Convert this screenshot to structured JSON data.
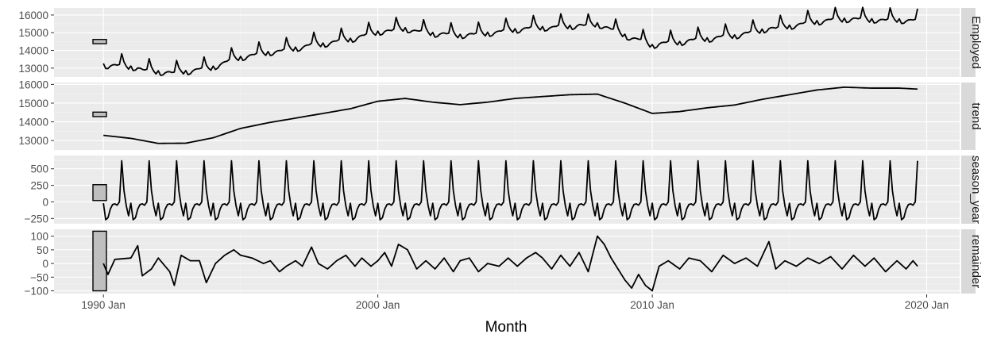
{
  "chart_data": {
    "type": "line",
    "xlabel": "Month",
    "x_ticks": [
      {
        "label": "1990 Jan",
        "value": 1990
      },
      {
        "label": "2000 Jan",
        "value": 2000
      },
      {
        "label": "2010 Jan",
        "value": 2010
      },
      {
        "label": "2020 Jan",
        "value": 2020
      }
    ],
    "xlim": [
      1988.2,
      2021.2
    ],
    "x_start": "1990 Jan",
    "x_end": "2019 Sep",
    "monthly_seasonal": [
      -20,
      -270,
      -240,
      -110,
      -40,
      -30,
      -50,
      0,
      620,
      170,
      -60,
      -210
    ],
    "trend_knots": [
      {
        "x": "1990 Jan",
        "y": 13280
      },
      {
        "x": "1991 Jan",
        "y": 13120
      },
      {
        "x": "1992 Jan",
        "y": 12850
      },
      {
        "x": "1993 Jan",
        "y": 12860
      },
      {
        "x": "1994 Jan",
        "y": 13150
      },
      {
        "x": "1995 Jan",
        "y": 13650
      },
      {
        "x": "1996 Jan",
        "y": 13950
      },
      {
        "x": "1997 Jan",
        "y": 14200
      },
      {
        "x": "1998 Jan",
        "y": 14450
      },
      {
        "x": "1999 Jan",
        "y": 14700
      },
      {
        "x": "2000 Jan",
        "y": 15100
      },
      {
        "x": "2001 Jan",
        "y": 15250
      },
      {
        "x": "2002 Jan",
        "y": 15050
      },
      {
        "x": "2003 Jan",
        "y": 14920
      },
      {
        "x": "2004 Jan",
        "y": 15050
      },
      {
        "x": "2005 Jan",
        "y": 15250
      },
      {
        "x": "2006 Jan",
        "y": 15350
      },
      {
        "x": "2007 Jan",
        "y": 15450
      },
      {
        "x": "2008 Jan",
        "y": 15480
      },
      {
        "x": "2009 Jan",
        "y": 15000
      },
      {
        "x": "2010 Jan",
        "y": 14450
      },
      {
        "x": "2011 Jan",
        "y": 14550
      },
      {
        "x": "2012 Jan",
        "y": 14750
      },
      {
        "x": "2013 Jan",
        "y": 14900
      },
      {
        "x": "2014 Jan",
        "y": 15200
      },
      {
        "x": "2015 Jan",
        "y": 15450
      },
      {
        "x": "2016 Jan",
        "y": 15700
      },
      {
        "x": "2017 Jan",
        "y": 15850
      },
      {
        "x": "2018 Jan",
        "y": 15800
      },
      {
        "x": "2019 Jan",
        "y": 15800
      },
      {
        "x": "2019 Sep",
        "y": 15750
      }
    ],
    "remainder_points": [
      {
        "x": "1990 Jan",
        "y": 0
      },
      {
        "x": "1990 Mar",
        "y": -40
      },
      {
        "x": "1990 Jun",
        "y": 15
      },
      {
        "x": "1991 Jan",
        "y": 20
      },
      {
        "x": "1991 Apr",
        "y": 65
      },
      {
        "x": "1991 Jun",
        "y": -45
      },
      {
        "x": "1991 Oct",
        "y": -20
      },
      {
        "x": "1992 Jan",
        "y": 20
      },
      {
        "x": "1992 Jun",
        "y": -30
      },
      {
        "x": "1992 Aug",
        "y": -80
      },
      {
        "x": "1992 Nov",
        "y": 30
      },
      {
        "x": "1993 Mar",
        "y": 10
      },
      {
        "x": "1993 Jul",
        "y": 10
      },
      {
        "x": "1993 Oct",
        "y": -70
      },
      {
        "x": "1994 Feb",
        "y": 0
      },
      {
        "x": "1994 Jun",
        "y": 30
      },
      {
        "x": "1994 Oct",
        "y": 50
      },
      {
        "x": "1995 Jan",
        "y": 30
      },
      {
        "x": "1995 Jun",
        "y": 20
      },
      {
        "x": "1995 Nov",
        "y": 0
      },
      {
        "x": "1996 Feb",
        "y": 10
      },
      {
        "x": "1996 Jun",
        "y": -30
      },
      {
        "x": "1996 Sep",
        "y": -10
      },
      {
        "x": "1997 Jan",
        "y": 10
      },
      {
        "x": "1997 Apr",
        "y": -10
      },
      {
        "x": "1997 Aug",
        "y": 60
      },
      {
        "x": "1997 Nov",
        "y": 0
      },
      {
        "x": "1998 Mar",
        "y": -20
      },
      {
        "x": "1998 Jul",
        "y": 10
      },
      {
        "x": "1998 Nov",
        "y": 30
      },
      {
        "x": "1999 Mar",
        "y": -10
      },
      {
        "x": "1999 Jun",
        "y": 20
      },
      {
        "x": "1999 Oct",
        "y": -10
      },
      {
        "x": "2000 Jan",
        "y": 10
      },
      {
        "x": "2000 Apr",
        "y": 40
      },
      {
        "x": "2000 Jul",
        "y": -10
      },
      {
        "x": "2000 Oct",
        "y": 70
      },
      {
        "x": "2001 Feb",
        "y": 50
      },
      {
        "x": "2001 Jun",
        "y": -20
      },
      {
        "x": "2001 Oct",
        "y": 10
      },
      {
        "x": "2002 Feb",
        "y": -20
      },
      {
        "x": "2002 Jun",
        "y": 20
      },
      {
        "x": "2002 Oct",
        "y": -30
      },
      {
        "x": "2003 Jan",
        "y": 10
      },
      {
        "x": "2003 May",
        "y": 20
      },
      {
        "x": "2003 Sep",
        "y": -30
      },
      {
        "x": "2004 Jan",
        "y": 0
      },
      {
        "x": "2004 Jun",
        "y": -10
      },
      {
        "x": "2004 Oct",
        "y": 20
      },
      {
        "x": "2005 Feb",
        "y": -10
      },
      {
        "x": "2005 Jun",
        "y": 20
      },
      {
        "x": "2005 Oct",
        "y": 40
      },
      {
        "x": "2006 Jan",
        "y": 20
      },
      {
        "x": "2006 May",
        "y": -20
      },
      {
        "x": "2006 Sep",
        "y": 30
      },
      {
        "x": "2007 Jan",
        "y": -10
      },
      {
        "x": "2007 May",
        "y": 40
      },
      {
        "x": "2007 Sep",
        "y": -30
      },
      {
        "x": "2008 Jan",
        "y": 100
      },
      {
        "x": "2008 Apr",
        "y": 70
      },
      {
        "x": "2008 Jul",
        "y": 20
      },
      {
        "x": "2008 Oct",
        "y": -20
      },
      {
        "x": "2009 Jan",
        "y": -60
      },
      {
        "x": "2009 Apr",
        "y": -90
      },
      {
        "x": "2009 Jul",
        "y": -40
      },
      {
        "x": "2009 Oct",
        "y": -80
      },
      {
        "x": "2010 Jan",
        "y": -100
      },
      {
        "x": "2010 Apr",
        "y": -10
      },
      {
        "x": "2010 Aug",
        "y": 10
      },
      {
        "x": "2011 Jan",
        "y": -20
      },
      {
        "x": "2011 May",
        "y": 20
      },
      {
        "x": "2011 Oct",
        "y": 10
      },
      {
        "x": "2012 Mar",
        "y": -30
      },
      {
        "x": "2012 Aug",
        "y": 30
      },
      {
        "x": "2013 Jan",
        "y": 0
      },
      {
        "x": "2013 Jun",
        "y": 20
      },
      {
        "x": "2013 Nov",
        "y": -10
      },
      {
        "x": "2014 Apr",
        "y": 80
      },
      {
        "x": "2014 Jul",
        "y": -20
      },
      {
        "x": "2014 Nov",
        "y": 10
      },
      {
        "x": "2015 Apr",
        "y": -10
      },
      {
        "x": "2015 Sep",
        "y": 20
      },
      {
        "x": "2016 Feb",
        "y": 0
      },
      {
        "x": "2016 Jul",
        "y": 25
      },
      {
        "x": "2016 Dec",
        "y": -20
      },
      {
        "x": "2017 May",
        "y": 30
      },
      {
        "x": "2017 Oct",
        "y": -10
      },
      {
        "x": "2018 Feb",
        "y": 20
      },
      {
        "x": "2018 Jul",
        "y": -30
      },
      {
        "x": "2018 Dec",
        "y": 10
      },
      {
        "x": "2019 Apr",
        "y": -20
      },
      {
        "x": "2019 Jul",
        "y": 10
      },
      {
        "x": "2019 Sep",
        "y": -10
      }
    ],
    "panels": [
      {
        "strip_label": "Employed",
        "series": "trend+season_year+remainder",
        "ylim": [
          12500,
          16400
        ],
        "y_ticks": [
          {
            "label": "16000",
            "value": 16000
          },
          {
            "label": "15000",
            "value": 15000
          },
          {
            "label": "14000",
            "value": 14000
          },
          {
            "label": "13000",
            "value": 13000
          }
        ],
        "scale_bar": [
          14380,
          14620
        ]
      },
      {
        "strip_label": "trend",
        "series": "trend",
        "ylim": [
          12500,
          16100
        ],
        "y_ticks": [
          {
            "label": "16000",
            "value": 16000
          },
          {
            "label": "15000",
            "value": 15000
          },
          {
            "label": "14000",
            "value": 14000
          },
          {
            "label": "13000",
            "value": 13000
          }
        ],
        "scale_bar": [
          14280,
          14520
        ]
      },
      {
        "strip_label": "season_year",
        "series": "season_year",
        "ylim": [
          -330,
          700
        ],
        "y_ticks": [
          {
            "label": "500",
            "value": 500
          },
          {
            "label": "250",
            "value": 250
          },
          {
            "label": "0",
            "value": 0
          },
          {
            "label": "−250",
            "value": -250
          }
        ],
        "scale_bar": [
          20,
          260
        ]
      },
      {
        "strip_label": "remainder",
        "series": "remainder",
        "ylim": [
          -110,
          125
        ],
        "y_ticks": [
          {
            "label": "100",
            "value": 100
          },
          {
            "label": "50",
            "value": 50
          },
          {
            "label": "0",
            "value": 0
          },
          {
            "label": "−50",
            "value": -50
          },
          {
            "label": "−100",
            "value": -100
          }
        ],
        "scale_bar": [
          -100,
          118
        ]
      }
    ]
  }
}
